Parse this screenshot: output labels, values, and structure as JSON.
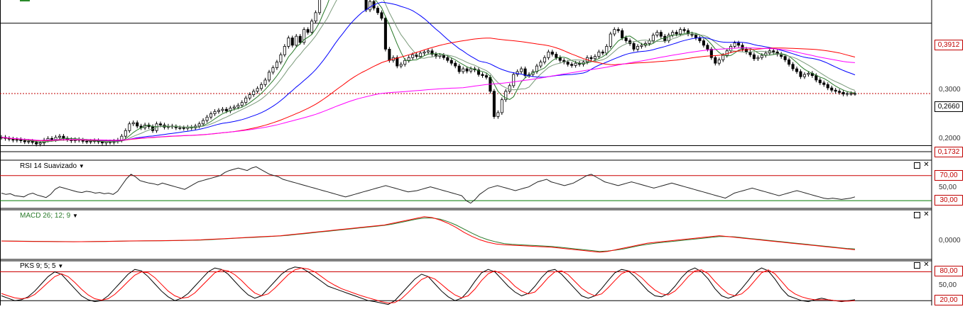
{
  "chart_data": [
    {
      "type": "candlestick",
      "yticks": [
        "0,3912",
        "0,3000",
        "0,2660",
        "0,2000",
        "0,1732"
      ],
      "ylim": [
        0.165,
        0.43
      ],
      "price_line": "0,2660",
      "price_line_value": 0.266,
      "horizontal_levels": [
        0.3912,
        0.1732
      ],
      "price_tags": [
        "0,3912",
        "0,2660",
        "0,1732"
      ],
      "colors": {
        "up": "#ffffff",
        "down": "#000000",
        "ma_fast": "#2a7a2a",
        "ma_slow": "#0000ff",
        "ma_long1": "#ff0000",
        "ma_long2": "#ff00ff"
      },
      "close": [
        0.188,
        0.186,
        0.185,
        0.183,
        0.184,
        0.182,
        0.18,
        0.181,
        0.179,
        0.176,
        0.178,
        0.183,
        0.186,
        0.184,
        0.188,
        0.19,
        0.186,
        0.184,
        0.182,
        0.184,
        0.183,
        0.181,
        0.18,
        0.181,
        0.182,
        0.18,
        0.178,
        0.18,
        0.179,
        0.181,
        0.183,
        0.19,
        0.2,
        0.212,
        0.214,
        0.208,
        0.205,
        0.21,
        0.207,
        0.2,
        0.212,
        0.21,
        0.206,
        0.208,
        0.207,
        0.205,
        0.205,
        0.204,
        0.206,
        0.205,
        0.208,
        0.212,
        0.218,
        0.224,
        0.23,
        0.234,
        0.236,
        0.238,
        0.235,
        0.24,
        0.242,
        0.245,
        0.25,
        0.258,
        0.264,
        0.27,
        0.275,
        0.282,
        0.29,
        0.304,
        0.312,
        0.322,
        0.335,
        0.35,
        0.365,
        0.352,
        0.368,
        0.357,
        0.38,
        0.375,
        0.395,
        0.41,
        0.44,
        0.455,
        0.47,
        0.49,
        0.5,
        0.485,
        0.475,
        0.492,
        0.48,
        0.462,
        0.452,
        0.44,
        0.415,
        0.43,
        0.418,
        0.41,
        0.4,
        0.345,
        0.325,
        0.33,
        0.315,
        0.318,
        0.325,
        0.33,
        0.335,
        0.332,
        0.338,
        0.34,
        0.342,
        0.336,
        0.332,
        0.334,
        0.33,
        0.325,
        0.32,
        0.315,
        0.305,
        0.31,
        0.306,
        0.31,
        0.308,
        0.3,
        0.298,
        0.295,
        0.27,
        0.225,
        0.232,
        0.255,
        0.27,
        0.28,
        0.3,
        0.305,
        0.31,
        0.298,
        0.3,
        0.305,
        0.315,
        0.322,
        0.33,
        0.34,
        0.336,
        0.33,
        0.325,
        0.322,
        0.318,
        0.316,
        0.32,
        0.318,
        0.322,
        0.33,
        0.328,
        0.332,
        0.34,
        0.338,
        0.35,
        0.372,
        0.38,
        0.378,
        0.365,
        0.36,
        0.355,
        0.345,
        0.35,
        0.352,
        0.355,
        0.36,
        0.37,
        0.375,
        0.368,
        0.36,
        0.37,
        0.375,
        0.372,
        0.38,
        0.378,
        0.372,
        0.37,
        0.365,
        0.36,
        0.352,
        0.345,
        0.33,
        0.32,
        0.326,
        0.334,
        0.342,
        0.35,
        0.356,
        0.352,
        0.345,
        0.34,
        0.335,
        0.328,
        0.33,
        0.334,
        0.338,
        0.342,
        0.34,
        0.336,
        0.332,
        0.326,
        0.318,
        0.31,
        0.305,
        0.296,
        0.3,
        0.302,
        0.298,
        0.29,
        0.285,
        0.282,
        0.276,
        0.272,
        0.27,
        0.268,
        0.265,
        0.266,
        0.266,
        0.266
      ]
    },
    {
      "type": "line",
      "title": "RSI 14 Suavizado",
      "yticks": [
        "70,00",
        "50,00",
        "30,00"
      ],
      "ylim": [
        20,
        90
      ],
      "levels": [
        70,
        30
      ],
      "level_tags": [
        "70,00",
        "30,00"
      ],
      "series": [
        {
          "color": "#222222",
          "values": [
            42,
            40,
            41,
            38,
            37,
            36,
            40,
            42,
            39,
            37,
            35,
            40,
            48,
            52,
            50,
            48,
            46,
            44,
            43,
            45,
            44,
            42,
            43,
            41,
            42,
            40,
            45,
            55,
            65,
            72,
            68,
            62,
            60,
            58,
            57,
            55,
            58,
            56,
            54,
            52,
            50,
            48,
            52,
            56,
            60,
            62,
            64,
            66,
            68,
            70,
            75,
            78,
            80,
            82,
            80,
            78,
            82,
            84,
            80,
            76,
            72,
            70,
            68,
            64,
            62,
            60,
            58,
            56,
            54,
            52,
            50,
            48,
            46,
            44,
            42,
            40,
            38,
            36,
            38,
            40,
            42,
            44,
            46,
            48,
            50,
            52,
            54,
            52,
            50,
            48,
            46,
            44,
            45,
            46,
            48,
            50,
            52,
            50,
            48,
            46,
            44,
            42,
            40,
            38,
            30,
            26,
            32,
            40,
            45,
            50,
            52,
            54,
            52,
            50,
            48,
            46,
            48,
            50,
            52,
            56,
            60,
            62,
            64,
            60,
            58,
            56,
            54,
            56,
            58,
            62,
            66,
            70,
            72,
            68,
            64,
            60,
            58,
            56,
            54,
            56,
            58,
            60,
            58,
            56,
            54,
            52,
            50,
            52,
            54,
            56,
            58,
            56,
            54,
            52,
            50,
            48,
            46,
            44,
            42,
            40,
            38,
            36,
            34,
            38,
            42,
            44,
            46,
            48,
            50,
            48,
            46,
            44,
            42,
            40,
            38,
            40,
            42,
            44,
            46,
            44,
            42,
            40,
            38,
            36,
            34,
            33,
            34,
            33,
            32,
            33,
            34,
            36
          ]
        }
      ]
    },
    {
      "type": "line",
      "title": "MACD 26; 12; 9",
      "yticks": [
        "0,0000"
      ],
      "ylim": [
        -0.04,
        0.07
      ],
      "series": [
        {
          "color": "#ff0000",
          "values": [
            0.001,
            0.0008,
            0.0005,
            0.0003,
            0.0001,
            0,
            -0.0002,
            -0.0004,
            -0.0005,
            -0.0006,
            -0.0005,
            -0.0003,
            0,
            0.0003,
            0.0006,
            0.0009,
            0.0012,
            0.0014,
            0.0016,
            0.0018,
            0.002,
            0.0022,
            0.0025,
            0.003,
            0.0035,
            0.004,
            0.005,
            0.006,
            0.007,
            0.008,
            0.009,
            0.01,
            0.011,
            0.012,
            0.013,
            0.014,
            0.016,
            0.018,
            0.02,
            0.022,
            0.024,
            0.026,
            0.028,
            0.03,
            0.032,
            0.034,
            0.036,
            0.038,
            0.04,
            0.044,
            0.048,
            0.052,
            0.056,
            0.06,
            0.058,
            0.052,
            0.044,
            0.034,
            0.022,
            0.012,
            0.004,
            -0.002,
            -0.006,
            -0.008,
            -0.009,
            -0.01,
            -0.011,
            -0.012,
            -0.013,
            -0.014,
            -0.016,
            -0.018,
            -0.02,
            -0.022,
            -0.024,
            -0.026,
            -0.024,
            -0.02,
            -0.016,
            -0.012,
            -0.008,
            -0.004,
            -0.002,
            0,
            0.002,
            0.004,
            0.006,
            0.008,
            0.01,
            0.012,
            0.014,
            0.012,
            0.01,
            0.008,
            0.006,
            0.004,
            0.002,
            0,
            -0.002,
            -0.004,
            -0.006,
            -0.008,
            -0.01,
            -0.012,
            -0.014,
            -0.016,
            -0.018,
            -0.02
          ]
        },
        {
          "color": "#2a7a2a",
          "values": [
            0.0012,
            0.001,
            0.0008,
            0.0006,
            0.0004,
            0.0002,
            0,
            -0.0002,
            -0.0003,
            -0.0004,
            -0.0004,
            -0.0003,
            -0.0001,
            0.0001,
            0.0004,
            0.0007,
            0.001,
            0.0012,
            0.0014,
            0.0016,
            0.0018,
            0.002,
            0.0022,
            0.0026,
            0.003,
            0.0035,
            0.0044,
            0.0054,
            0.0064,
            0.0074,
            0.0084,
            0.0094,
            0.0104,
            0.0114,
            0.0124,
            0.0134,
            0.015,
            0.017,
            0.019,
            0.021,
            0.023,
            0.025,
            0.027,
            0.029,
            0.031,
            0.033,
            0.035,
            0.037,
            0.039,
            0.042,
            0.046,
            0.05,
            0.054,
            0.057,
            0.057,
            0.054,
            0.048,
            0.04,
            0.03,
            0.02,
            0.011,
            0.004,
            -0.001,
            -0.005,
            -0.007,
            -0.008,
            -0.009,
            -0.01,
            -0.011,
            -0.012,
            -0.014,
            -0.016,
            -0.018,
            -0.02,
            -0.022,
            -0.024,
            -0.023,
            -0.021,
            -0.018,
            -0.014,
            -0.01,
            -0.007,
            -0.004,
            -0.002,
            0,
            0.002,
            0.004,
            0.006,
            0.008,
            0.01,
            0.012,
            0.012,
            0.011,
            0.009,
            0.007,
            0.005,
            0.003,
            0.001,
            -0.001,
            -0.003,
            -0.005,
            -0.007,
            -0.009,
            -0.011,
            -0.013,
            -0.015,
            -0.017,
            -0.018
          ]
        }
      ]
    },
    {
      "type": "line",
      "title": "PKS 9; 5; 5",
      "yticks": [
        "80,00",
        "50,00",
        "20,00"
      ],
      "ylim": [
        10,
        100
      ],
      "levels": [
        80,
        20
      ],
      "level_tags": [
        "80,00",
        "20,00"
      ],
      "series": [
        {
          "color": "#000000",
          "values": [
            30,
            25,
            20,
            22,
            28,
            40,
            55,
            70,
            80,
            75,
            60,
            45,
            30,
            22,
            18,
            20,
            30,
            45,
            60,
            75,
            85,
            82,
            70,
            55,
            40,
            28,
            20,
            25,
            35,
            50,
            65,
            80,
            88,
            85,
            75,
            60,
            45,
            32,
            25,
            30,
            45,
            60,
            75,
            85,
            90,
            88,
            80,
            70,
            60,
            50,
            45,
            40,
            35,
            30,
            25,
            20,
            18,
            15,
            12,
            20,
            35,
            50,
            65,
            75,
            70,
            55,
            40,
            28,
            20,
            25,
            40,
            60,
            78,
            85,
            80,
            65,
            50,
            38,
            30,
            35,
            50,
            68,
            82,
            85,
            75,
            60,
            45,
            30,
            25,
            30,
            45,
            62,
            78,
            85,
            82,
            70,
            55,
            40,
            30,
            28,
            35,
            50,
            68,
            82,
            88,
            80,
            65,
            45,
            30,
            25,
            30,
            45,
            62,
            80,
            88,
            82,
            65,
            45,
            30,
            25,
            20,
            18,
            22,
            25,
            22,
            20,
            18,
            20,
            22
          ]
        },
        {
          "color": "#ff0000",
          "values": [
            35,
            30,
            26,
            24,
            26,
            33,
            45,
            58,
            70,
            76,
            70,
            58,
            44,
            32,
            24,
            21,
            24,
            33,
            46,
            60,
            73,
            80,
            78,
            68,
            54,
            40,
            30,
            25,
            27,
            36,
            50,
            64,
            78,
            84,
            82,
            74,
            62,
            48,
            36,
            30,
            34,
            46,
            60,
            74,
            84,
            88,
            86,
            80,
            70,
            60,
            52,
            45,
            40,
            35,
            30,
            26,
            22,
            18,
            15,
            16,
            24,
            37,
            51,
            64,
            70,
            65,
            54,
            42,
            32,
            26,
            30,
            44,
            62,
            76,
            82,
            76,
            64,
            50,
            40,
            34,
            38,
            52,
            68,
            80,
            82,
            74,
            60,
            46,
            36,
            30,
            34,
            47,
            62,
            76,
            82,
            78,
            68,
            54,
            42,
            34,
            32,
            40,
            54,
            70,
            82,
            84,
            76,
            60,
            46,
            34,
            30,
            34,
            46,
            62,
            78,
            84,
            76,
            60,
            44,
            34,
            28,
            24,
            22,
            22,
            22,
            20,
            19,
            19,
            20
          ]
        }
      ]
    }
  ]
}
